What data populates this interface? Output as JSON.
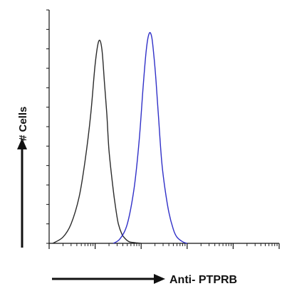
{
  "chart_data": {
    "type": "line",
    "title": "",
    "xlabel": "Anti- PTPRB",
    "ylabel": "# Cells",
    "x_scale": "log",
    "xlim": [
      0.1,
      10000
    ],
    "ylim": [
      0,
      300
    ],
    "grid": false,
    "series": [
      {
        "color": "#2b2b2b",
        "x": [
          0.12,
          0.2,
          0.3,
          0.45,
          0.6,
          0.8,
          1.0,
          1.2,
          1.4,
          1.6,
          1.8,
          2.0,
          2.4,
          2.8,
          3.2,
          3.8,
          4.5,
          5.5,
          7,
          10
        ],
        "y": [
          0,
          8,
          25,
          60,
          105,
          165,
          230,
          260,
          250,
          205,
          165,
          120,
          75,
          45,
          25,
          12,
          6,
          2,
          1,
          0
        ]
      },
      {
        "color": "#3030c8",
        "x": [
          2.5,
          3.5,
          5,
          7,
          9,
          11,
          13,
          15,
          17,
          19,
          21,
          24,
          28,
          33,
          40,
          50,
          60,
          80,
          100
        ],
        "y": [
          0,
          6,
          25,
          70,
          130,
          200,
          250,
          270,
          265,
          240,
          210,
          160,
          105,
          70,
          40,
          18,
          8,
          2,
          0
        ]
      }
    ]
  }
}
